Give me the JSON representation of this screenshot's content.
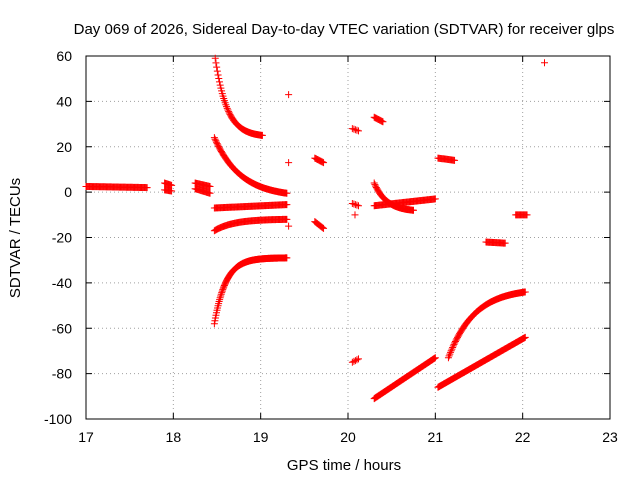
{
  "chart_data": {
    "type": "scatter",
    "title": "Day 069 of 2026, Sidereal Day-to-day VTEC variation (SDTVAR) for receiver glps",
    "xlabel": "GPS time / hours",
    "ylabel": "SDTVAR / TECUs",
    "xlim": [
      17,
      23
    ],
    "ylim": [
      -100,
      60
    ],
    "xticks": [
      "17",
      "18",
      "19",
      "20",
      "21",
      "22",
      "23"
    ],
    "yticks": [
      "60",
      "40",
      "20",
      "0",
      "-20",
      "-40",
      "-60",
      "-80",
      "-100"
    ],
    "grid": true,
    "marker": "+",
    "marker_color": "#ff0000",
    "segments": [
      {
        "x0": 17.0,
        "x1": 17.7,
        "y": "linear",
        "a": 2.5,
        "b": 2.0,
        "step": 0.01
      },
      {
        "x0": 17.9,
        "x1": 17.98,
        "y": "linear",
        "a": 4.0,
        "b": 3.0,
        "step": 0.01
      },
      {
        "x0": 17.9,
        "x1": 17.98,
        "y": "linear",
        "a": 1.0,
        "b": 0.5,
        "step": 0.01
      },
      {
        "x0": 18.25,
        "x1": 18.42,
        "y": "linear",
        "a": 4.0,
        "b": 2.5,
        "step": 0.01
      },
      {
        "x0": 18.25,
        "x1": 18.42,
        "y": "linear",
        "a": 1.5,
        "b": -0.5,
        "step": 0.01
      },
      {
        "x0": 18.48,
        "x1": 19.02,
        "y": "curve",
        "a": 59.0,
        "b": 25.0,
        "k": 0.55,
        "step": 0.008
      },
      {
        "x0": 18.47,
        "x1": 19.3,
        "y": "curve",
        "a": 24.0,
        "b": -0.5,
        "k": 0.8,
        "step": 0.008
      },
      {
        "x0": 18.47,
        "x1": 19.3,
        "y": "linear",
        "a": -7.0,
        "b": -5.5,
        "step": 0.01
      },
      {
        "x0": 18.47,
        "x1": 19.3,
        "y": "curve",
        "a": -17.0,
        "b": -12.0,
        "k": 0.6,
        "step": 0.01
      },
      {
        "x0": 18.47,
        "x1": 19.3,
        "y": "curve",
        "a": -58.0,
        "b": -29.0,
        "k": 0.35,
        "step": 0.006
      },
      {
        "x0": 19.62,
        "x1": 19.72,
        "y": "linear",
        "a": 15.0,
        "b": 13.0,
        "step": 0.01
      },
      {
        "x0": 19.62,
        "x1": 19.72,
        "y": "linear",
        "a": -13.0,
        "b": -16.0,
        "step": 0.01
      },
      {
        "x0": 20.05,
        "x1": 20.12,
        "y": "linear",
        "a": 28.0,
        "b": 27.0,
        "step": 0.02
      },
      {
        "x0": 20.05,
        "x1": 20.12,
        "y": "linear",
        "a": -5.0,
        "b": -6.0,
        "step": 0.02
      },
      {
        "x0": 20.05,
        "x1": 20.12,
        "y": "linear",
        "a": -75.0,
        "b": -73.5,
        "step": 0.02
      },
      {
        "x0": 20.3,
        "x1": 20.4,
        "y": "linear",
        "a": 33.0,
        "b": 31.0,
        "step": 0.01
      },
      {
        "x0": 20.3,
        "x1": 20.75,
        "y": "curve",
        "a": 4.0,
        "b": -8.0,
        "k": 0.7,
        "step": 0.008
      },
      {
        "x0": 20.3,
        "x1": 21.0,
        "y": "linear",
        "a": -6.0,
        "b": -3.0,
        "step": 0.01
      },
      {
        "x0": 20.3,
        "x1": 21.0,
        "y": "linear",
        "a": -91.0,
        "b": -73.0,
        "step": 0.008
      },
      {
        "x0": 21.03,
        "x1": 21.22,
        "y": "linear",
        "a": 15.0,
        "b": 14.0,
        "step": 0.01
      },
      {
        "x0": 21.03,
        "x1": 22.03,
        "y": "linear",
        "a": -86.0,
        "b": -64.0,
        "step": 0.008
      },
      {
        "x0": 21.15,
        "x1": 22.03,
        "y": "curve",
        "a": -73.0,
        "b": -44.0,
        "k": 0.75,
        "step": 0.008
      },
      {
        "x0": 21.58,
        "x1": 21.8,
        "y": "linear",
        "a": -22.0,
        "b": -22.5,
        "step": 0.01
      },
      {
        "x0": 21.92,
        "x1": 22.05,
        "y": "linear",
        "a": -10.0,
        "b": -10.0,
        "step": 0.01
      }
    ],
    "points": [
      {
        "x": 19.32,
        "y": 43
      },
      {
        "x": 19.32,
        "y": 13
      },
      {
        "x": 19.32,
        "y": -15
      },
      {
        "x": 20.08,
        "y": -10
      },
      {
        "x": 22.25,
        "y": 57
      }
    ]
  }
}
